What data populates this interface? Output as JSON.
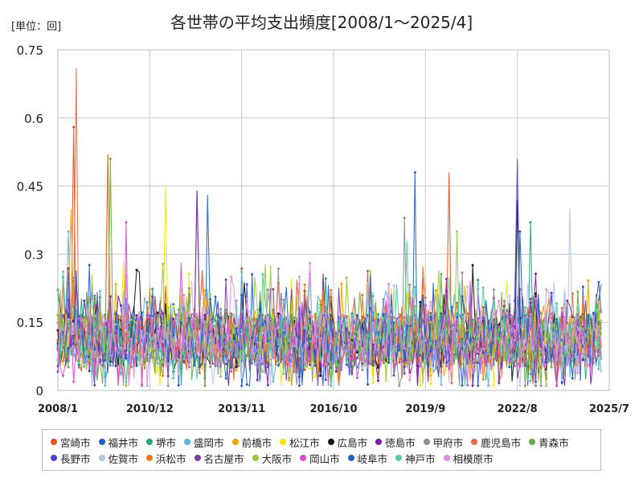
{
  "chart_data": {
    "type": "line",
    "title": "各世帯の平均支出頻度[2008/1～2025/4]",
    "unit_label": "[単位：回]",
    "xlabel": "",
    "ylabel": "",
    "ylim": [
      0,
      0.75
    ],
    "y_ticks": [
      "0",
      "0.15",
      "0.3",
      "0.45",
      "0.6",
      "0.75"
    ],
    "x_range": [
      "2008-01",
      "2025-07"
    ],
    "x_ticks": [
      {
        "label": "2008/1",
        "date": "2008-01"
      },
      {
        "label": "2010/12",
        "date": "2010-12"
      },
      {
        "label": "2013/11",
        "date": "2013-11"
      },
      {
        "label": "2016/10",
        "date": "2016-10"
      },
      {
        "label": "2019/9",
        "date": "2019-09"
      },
      {
        "label": "2022/8",
        "date": "2022-08"
      },
      {
        "label": "2025/7",
        "date": "2025-07"
      }
    ],
    "data_start": "2008-01",
    "data_end": "2025-04",
    "grid": true,
    "legend_position": "bottom",
    "series": [
      {
        "name": "宮崎市",
        "color": "#e6531d",
        "peaks": [
          {
            "x": "2008-07",
            "y": 0.58
          },
          {
            "x": "2020-06",
            "y": 0.48
          }
        ]
      },
      {
        "name": "福井市",
        "color": "#1f5fd6",
        "peaks": [
          {
            "x": "2019-05",
            "y": 0.48
          },
          {
            "x": "2012-10",
            "y": 0.43
          }
        ]
      },
      {
        "name": "堺市",
        "color": "#1aa882",
        "peaks": [
          {
            "x": "2023-01",
            "y": 0.37
          }
        ]
      },
      {
        "name": "盛岡市",
        "color": "#5ab7e6",
        "peaks": [
          {
            "x": "2008-05",
            "y": 0.35
          }
        ]
      },
      {
        "name": "前橋市",
        "color": "#f4a300",
        "peaks": [
          {
            "x": "2008-06",
            "y": 0.4
          }
        ]
      },
      {
        "name": "松江市",
        "color": "#f7e500",
        "peaks": [
          {
            "x": "2011-06",
            "y": 0.45
          }
        ]
      },
      {
        "name": "広島市",
        "color": "#111111",
        "peaks": [
          {
            "x": "2022-08",
            "y": 0.42
          }
        ]
      },
      {
        "name": "徳島市",
        "color": "#7a1fa2",
        "peaks": [
          {
            "x": "2012-06",
            "y": 0.44
          }
        ]
      },
      {
        "name": "甲府市",
        "color": "#8a8f98",
        "peaks": [
          {
            "x": "2019-01",
            "y": 0.38
          }
        ]
      },
      {
        "name": "鹿児島市",
        "color": "#e36b42",
        "peaks": [
          {
            "x": "2008-08",
            "y": 0.71
          },
          {
            "x": "2009-08",
            "y": 0.52
          }
        ]
      },
      {
        "name": "青森市",
        "color": "#6aab46",
        "peaks": [
          {
            "x": "2009-09",
            "y": 0.51
          }
        ]
      },
      {
        "name": "長野市",
        "color": "#4a4ad9",
        "peaks": [
          {
            "x": "2022-08",
            "y": 0.51
          }
        ]
      },
      {
        "name": "佐賀市",
        "color": "#b4c7e7",
        "peaks": [
          {
            "x": "2024-04",
            "y": 0.4
          }
        ]
      },
      {
        "name": "浜松市",
        "color": "#ec7a1e",
        "peaks": [
          {
            "x": "2009-08",
            "y": 0.52
          }
        ]
      },
      {
        "name": "名古屋市",
        "color": "#7b3fa0",
        "peaks": [
          {
            "x": "2012-06",
            "y": 0.44
          }
        ]
      },
      {
        "name": "大阪市",
        "color": "#9bc83c",
        "peaks": [
          {
            "x": "2020-09",
            "y": 0.35
          }
        ]
      },
      {
        "name": "岡山市",
        "color": "#d84fcf",
        "peaks": [
          {
            "x": "2010-03",
            "y": 0.37
          }
        ]
      },
      {
        "name": "岐阜市",
        "color": "#1c62c4",
        "peaks": [
          {
            "x": "2022-09",
            "y": 0.35
          }
        ]
      },
      {
        "name": "神戸市",
        "color": "#4fcf9f",
        "peaks": [
          {
            "x": "2019-02",
            "y": 0.33
          }
        ]
      },
      {
        "name": "相模原市",
        "color": "#e48ae4",
        "peaks": [
          {
            "x": "2016-01",
            "y": 0.28
          }
        ]
      }
    ]
  }
}
